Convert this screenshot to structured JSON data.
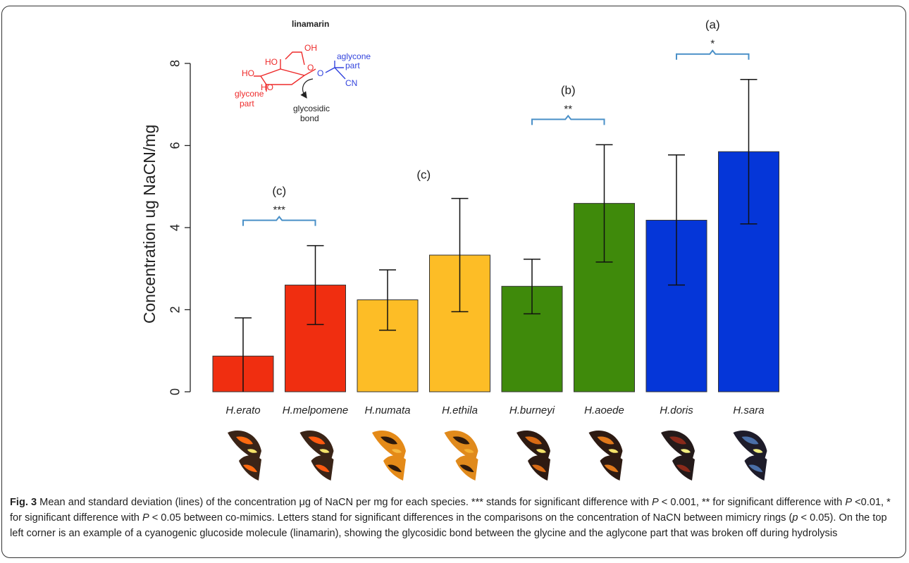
{
  "colors": {
    "ring_red": "#f02e10",
    "ring_orange": "#fdbd26",
    "ring_green": "#3f8a0b",
    "ring_blue": "#0536d8",
    "bracket": "#4a90c8",
    "glycone": "#ee2b2b",
    "aglycone": "#3344dd",
    "text": "#222222"
  },
  "chart_data": {
    "type": "bar",
    "ylabel": "Concentration ug NaCN/mg",
    "ylim": [
      0,
      8
    ],
    "yticks": [
      0,
      2,
      4,
      6,
      8
    ],
    "categories": [
      "H.erato",
      "H.melpomene",
      "H.numata",
      "H.ethila",
      "H.burneyi",
      "H.aoede",
      "H.doris",
      "H.sara"
    ],
    "values": [
      0.87,
      2.6,
      2.24,
      3.33,
      2.57,
      4.59,
      4.18,
      5.85
    ],
    "error_low": [
      0,
      1.64,
      1.5,
      1.95,
      1.9,
      3.16,
      2.6,
      4.09
    ],
    "error_high": [
      1.8,
      3.56,
      2.97,
      4.71,
      3.23,
      6.02,
      5.77,
      7.61
    ],
    "bar_colors": [
      "#f02e10",
      "#f02e10",
      "#fdbd26",
      "#fdbd26",
      "#3f8a0b",
      "#3f8a0b",
      "#0536d8",
      "#0536d8"
    ],
    "wing_icons": [
      "butterfly-wing-erato-icon",
      "butterfly-wing-melpomene-icon",
      "butterfly-wing-numata-icon",
      "butterfly-wing-ethila-icon",
      "butterfly-wing-burneyi-icon",
      "butterfly-wing-aoede-icon",
      "butterfly-wing-doris-icon",
      "butterfly-wing-sara-icon"
    ],
    "brackets": [
      {
        "from": 0,
        "to": 1,
        "stars": "***",
        "letter": "(c)"
      },
      {
        "from": 4,
        "to": 5,
        "stars": "**",
        "letter": "(b)"
      },
      {
        "from": 6,
        "to": 7,
        "stars": "*",
        "letter": "(a)"
      }
    ],
    "group_letters": [
      {
        "from": 2,
        "to": 3,
        "letter": "(c)"
      }
    ],
    "grid": false,
    "legend": "none"
  },
  "molecule": {
    "title": "linamarin",
    "oh_top": "OH",
    "ho_upper": "HO",
    "ho_left": "HO",
    "ho_bottom": "HO",
    "ring_o": "O",
    "bridge_o": "O",
    "cn": "CN",
    "glycone_line1": "glycone",
    "glycone_line2": "part",
    "aglycone_line1": "aglycone",
    "aglycone_line2": "part",
    "bond_line1": "glycosidic",
    "bond_line2": "bond"
  },
  "caption": {
    "label": "Fig. 3",
    "s1": " Mean and standard deviation (lines) of the concentration μg of NaCN per mg for each species. *** stands for significant difference with ",
    "p1": "P",
    "s2": " < 0.001, ** for significant difference with ",
    "p2": "P",
    "s3": " <0.01, * for significant difference with ",
    "p3": "P",
    "s4": " < 0.05 between co-mimics. Letters stand for significant differences in the comparisons on the concentration of NaCN between mimicry rings (",
    "p4": "p",
    "s5": " < 0.05). On the top left corner is an example of a cyanogenic glucoside molecule (linamarin), showing the glycosidic bond between the glycine and the aglycone part that was broken off during hydrolysis"
  }
}
